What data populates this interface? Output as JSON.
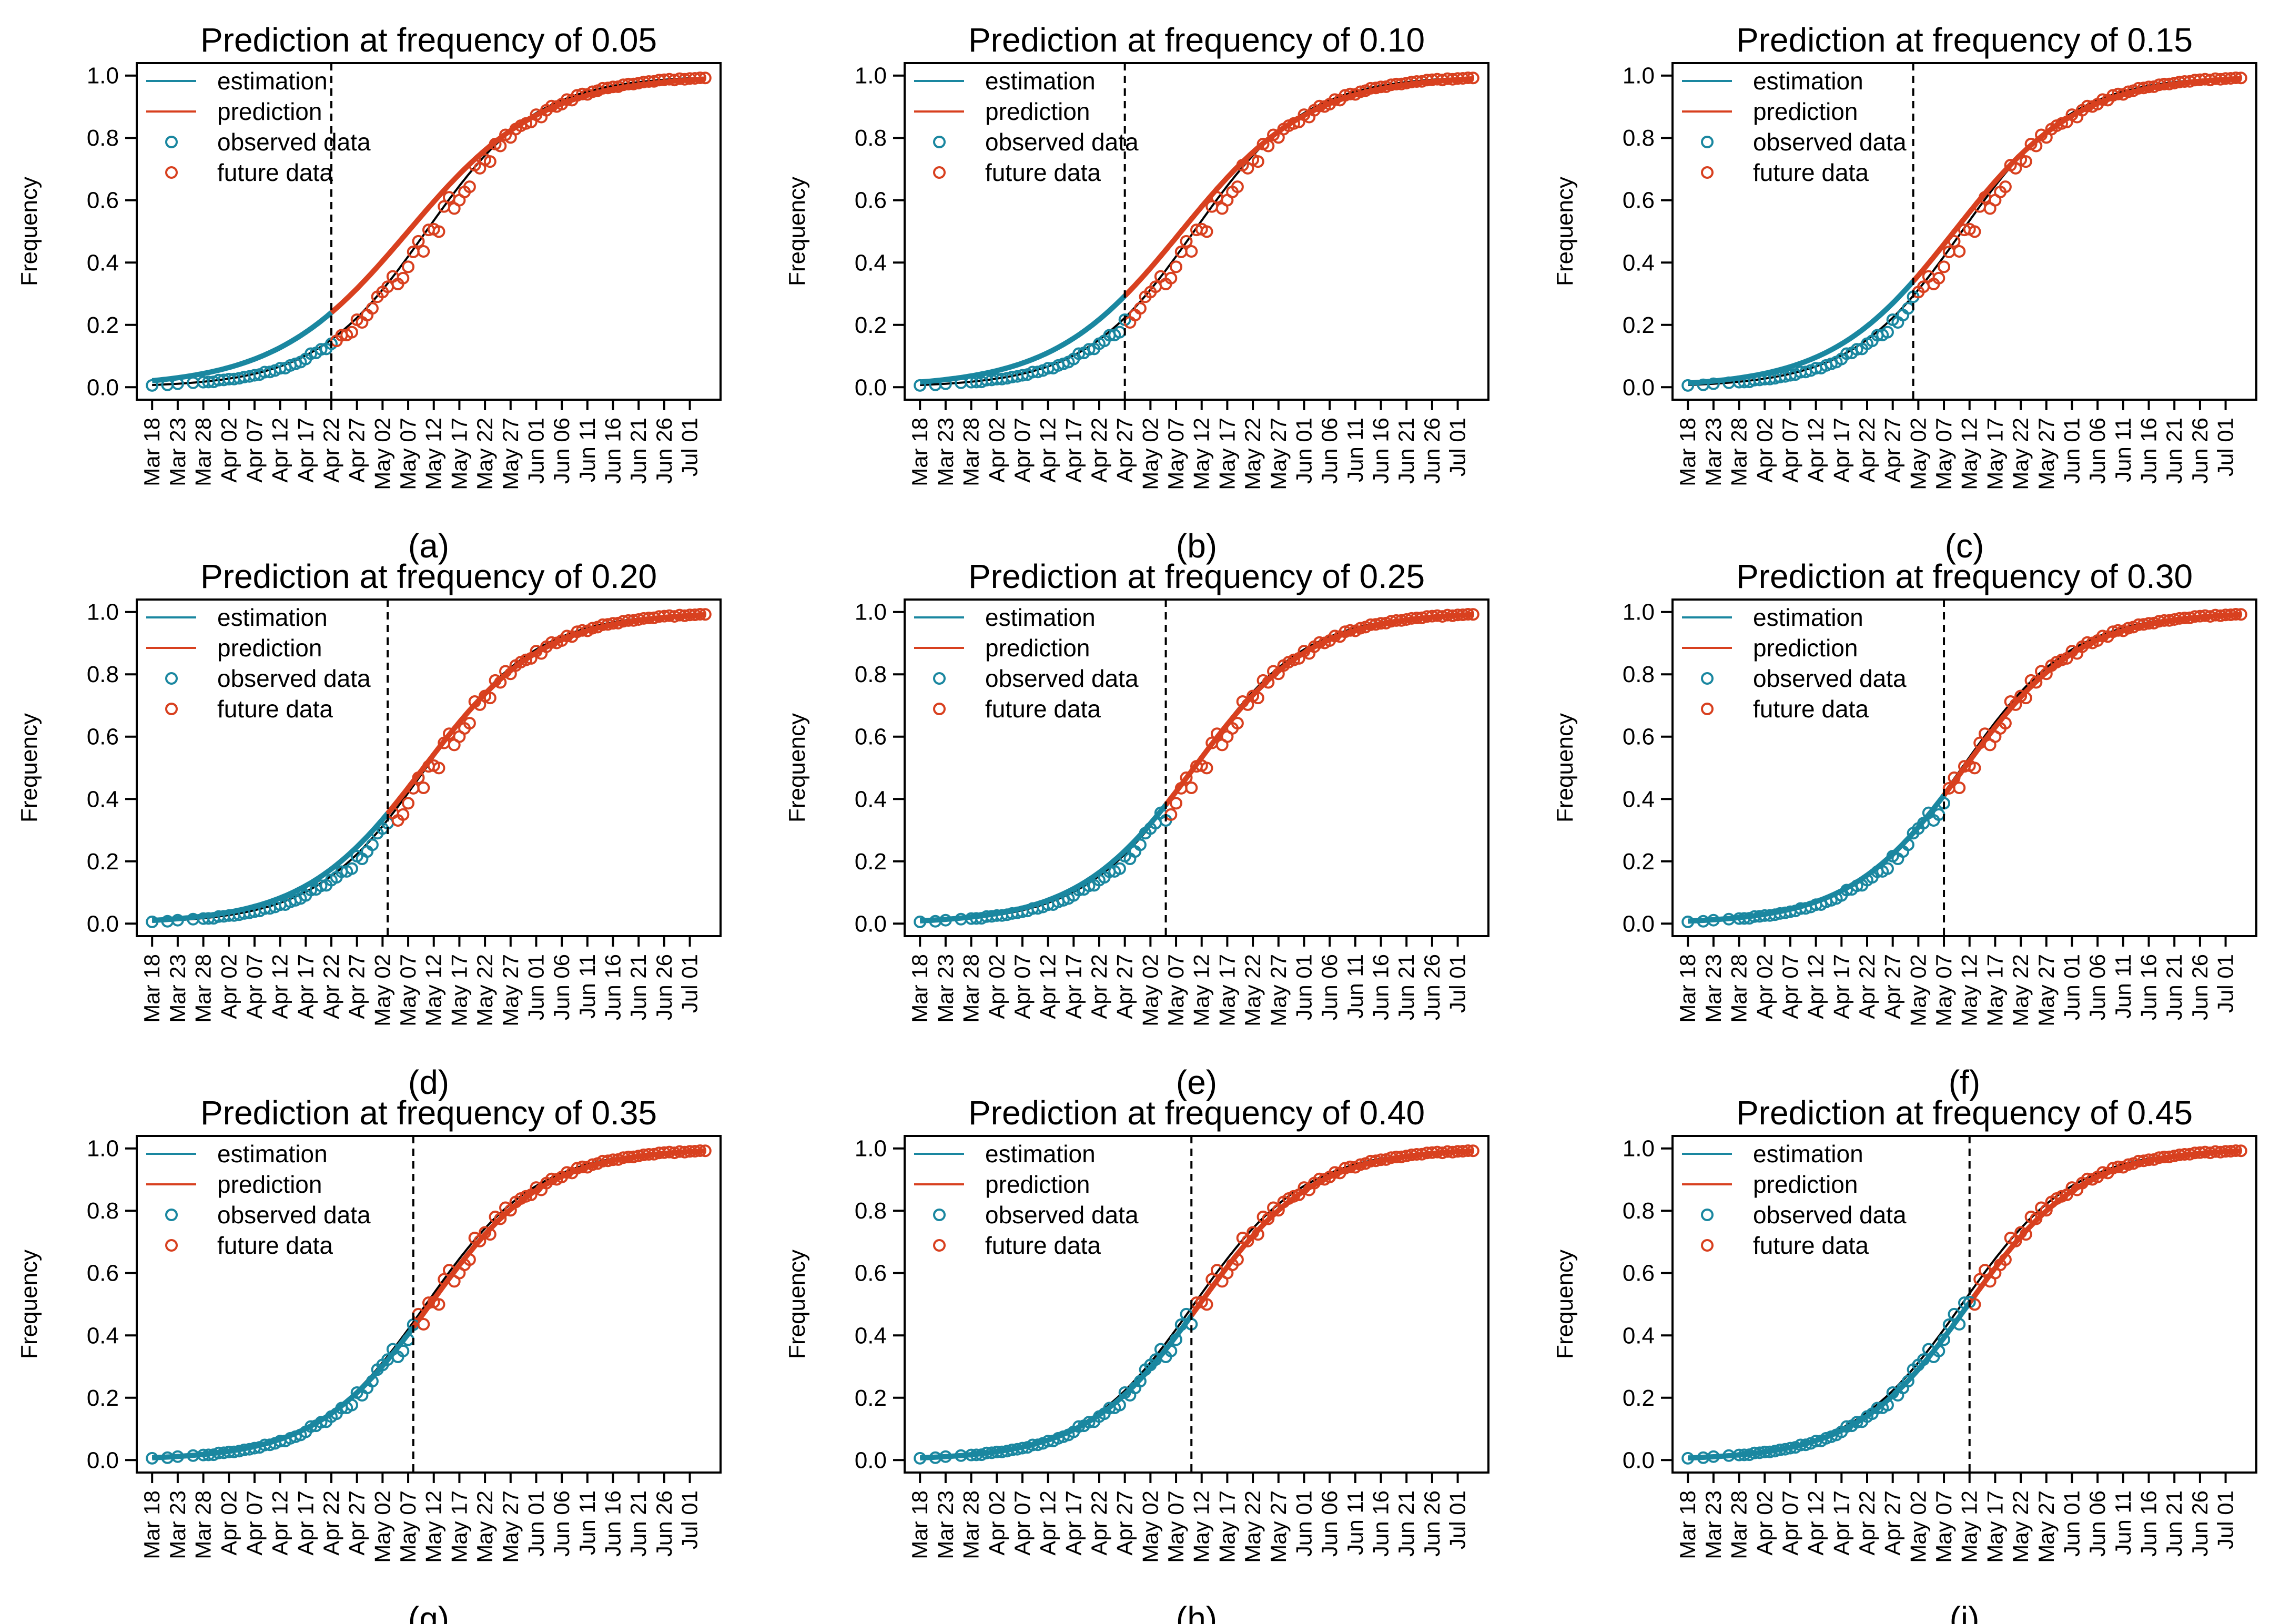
{
  "figure": {
    "colors": {
      "estimation": "#1a87a0",
      "prediction": "#d8401f",
      "truth": "#000000",
      "axis": "#000000"
    },
    "legend": [
      "estimation",
      "prediction",
      "observed data",
      "future data"
    ],
    "ylabel": "Frequency",
    "x_tick_labels": [
      "Mar 18",
      "Mar 23",
      "Mar 28",
      "Apr 02",
      "Apr 07",
      "Apr 12",
      "Apr 17",
      "Apr 22",
      "Apr 27",
      "May 02",
      "May 07",
      "May 12",
      "May 17",
      "May 22",
      "May 27",
      "Jun 01",
      "Jun 06",
      "Jun 11",
      "Jun 16",
      "Jun 21",
      "Jun 26",
      "Jul 01"
    ],
    "y_tick_labels": [
      "0.0",
      "0.2",
      "0.4",
      "0.6",
      "0.8",
      "1.0"
    ]
  },
  "chart_data": [
    {
      "type": "line",
      "panel_label": "(a)",
      "title": "Prediction at frequency of 0.05",
      "cutoff_day": 35,
      "cutoff_freq": 0.05,
      "xlabel": "",
      "ylabel": "Frequency",
      "ylim": [
        0,
        1
      ],
      "xlim": [
        0,
        108
      ],
      "series": [
        {
          "name": "estimation",
          "values": "logistic k=0.0770 t0=50.0 up to cutoff"
        },
        {
          "name": "prediction",
          "values": "logistic k=0.0770 t0=50.0"
        },
        {
          "name": "observed data",
          "values": "daily observations up to cutoff"
        },
        {
          "name": "future data",
          "values": "daily observations after cutoff"
        },
        {
          "name": "true curve",
          "values": "logistic k=0.0925 t0=53.5"
        }
      ]
    },
    {
      "type": "line",
      "panel_label": "(b)",
      "title": "Prediction at frequency of 0.10",
      "cutoff_day": 40,
      "cutoff_freq": 0.1,
      "xlabel": "",
      "ylabel": "Frequency",
      "ylim": [
        0,
        1
      ],
      "xlim": [
        0,
        108
      ]
    },
    {
      "type": "line",
      "panel_label": "(c)",
      "title": "Prediction at frequency of 0.15",
      "cutoff_day": 44,
      "cutoff_freq": 0.15,
      "xlabel": "",
      "ylabel": "Frequency",
      "ylim": [
        0,
        1
      ],
      "xlim": [
        0,
        108
      ]
    },
    {
      "type": "line",
      "panel_label": "(d)",
      "title": "Prediction at frequency of 0.20",
      "cutoff_day": 46,
      "cutoff_freq": 0.2,
      "xlabel": "",
      "ylabel": "Frequency",
      "ylim": [
        0,
        1
      ],
      "xlim": [
        0,
        108
      ]
    },
    {
      "type": "line",
      "panel_label": "(e)",
      "title": "Prediction at frequency of 0.25",
      "cutoff_day": 48,
      "cutoff_freq": 0.25,
      "xlabel": "",
      "ylabel": "Frequency",
      "ylim": [
        0,
        1
      ],
      "xlim": [
        0,
        108
      ]
    },
    {
      "type": "line",
      "panel_label": "(f)",
      "title": "Prediction at frequency of 0.30",
      "cutoff_day": 50,
      "cutoff_freq": 0.3,
      "xlabel": "",
      "ylabel": "Frequency",
      "ylim": [
        0,
        1
      ],
      "xlim": [
        0,
        108
      ]
    },
    {
      "type": "line",
      "panel_label": "(g)",
      "title": "Prediction at frequency of 0.35",
      "cutoff_day": 51,
      "cutoff_freq": 0.35,
      "xlabel": "",
      "ylabel": "Frequency",
      "ylim": [
        0,
        1
      ],
      "xlim": [
        0,
        108
      ]
    },
    {
      "type": "line",
      "panel_label": "(h)",
      "title": "Prediction at frequency of 0.40",
      "cutoff_day": 53,
      "cutoff_freq": 0.4,
      "xlabel": "",
      "ylabel": "Frequency",
      "ylim": [
        0,
        1
      ],
      "xlim": [
        0,
        108
      ]
    },
    {
      "type": "line",
      "panel_label": "(i)",
      "title": "Prediction at frequency of 0.45",
      "cutoff_day": 55,
      "cutoff_freq": 0.45,
      "xlabel": "",
      "ylabel": "Frequency",
      "ylim": [
        0,
        1
      ],
      "xlim": [
        0,
        108
      ]
    }
  ]
}
